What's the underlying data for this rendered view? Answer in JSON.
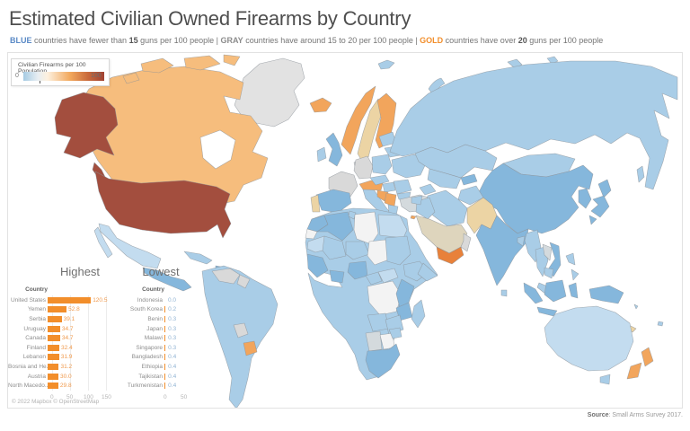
{
  "page": {
    "title": "Estimated Civilian Owned Firearms by Country"
  },
  "subtitle": {
    "parts": [
      {
        "text": "BLUE"
      },
      {
        "text": " countries have fewer than "
      },
      {
        "text": "15"
      },
      {
        "text": " guns per 100 people | "
      },
      {
        "text": "GRAY"
      },
      {
        "text": " countries have around 15 to 20 per 100 people | "
      },
      {
        "text": "GOLD"
      },
      {
        "text": " countries have over "
      },
      {
        "text": "20"
      },
      {
        "text": " guns per 100 people"
      }
    ]
  },
  "legend": {
    "title": "Civilian Firearms per 100 Population",
    "min": "0",
    "max": "100"
  },
  "colors": {
    "blue_label": "#5a8ac6",
    "gold_label": "#f28e2b",
    "bar_orange": "#f28e2b",
    "usa_dark_red": "#a34e3e",
    "canada_orange": "#f6bd7d",
    "map_light_blue": "#a9cde7",
    "map_gray": "#d9d9d9",
    "scale_min_color": "#a6cbe3",
    "scale_max_color": "#a04233"
  },
  "charts": {
    "highest": {
      "title": "Highest",
      "column_header": "Country",
      "rows": [
        {
          "country": "United States",
          "value": "120.5",
          "v": 120.5
        },
        {
          "country": "Yemen",
          "value": "52.8",
          "v": 52.8
        },
        {
          "country": "Serbia",
          "value": "39.1",
          "v": 39.1
        },
        {
          "country": "Uruguay",
          "value": "34.7",
          "v": 34.7
        },
        {
          "country": "Canada",
          "value": "34.7",
          "v": 34.7
        },
        {
          "country": "Finland",
          "value": "32.4",
          "v": 32.4
        },
        {
          "country": "Lebanon",
          "value": "31.9",
          "v": 31.9
        },
        {
          "country": "Bosnia and He..",
          "value": "31.2",
          "v": 31.2
        },
        {
          "country": "Austria",
          "value": "30.0",
          "v": 30.0
        },
        {
          "country": "North Macedo..",
          "value": "29.8",
          "v": 29.8
        }
      ],
      "axis_ticks": [
        "0",
        "50",
        "100",
        "150"
      ]
    },
    "lowest": {
      "title": "Lowest",
      "column_header": "Country",
      "rows": [
        {
          "country": "Indonesia",
          "value": "0.0",
          "v": 0.0
        },
        {
          "country": "South Korea",
          "value": "0.2",
          "v": 0.2
        },
        {
          "country": "Benin",
          "value": "0.3",
          "v": 0.3
        },
        {
          "country": "Japan",
          "value": "0.3",
          "v": 0.3
        },
        {
          "country": "Malawi",
          "value": "0.3",
          "v": 0.3
        },
        {
          "country": "Singapore",
          "value": "0.3",
          "v": 0.3
        },
        {
          "country": "Bangladesh",
          "value": "0.4",
          "v": 0.4
        },
        {
          "country": "Ethiopia",
          "value": "0.4",
          "v": 0.4
        },
        {
          "country": "Tajikistan",
          "value": "0.4",
          "v": 0.4
        },
        {
          "country": "Turkmenistan",
          "value": "0.4",
          "v": 0.4
        }
      ],
      "axis_ticks": [
        "0",
        "50"
      ]
    }
  },
  "chart_data": [
    {
      "type": "bar",
      "title": "Highest",
      "orientation": "horizontal",
      "categories": [
        "United States",
        "Yemen",
        "Serbia",
        "Uruguay",
        "Canada",
        "Finland",
        "Lebanon",
        "Bosnia and He..",
        "Austria",
        "North Macedo.."
      ],
      "values": [
        120.5,
        52.8,
        39.1,
        34.7,
        34.7,
        32.4,
        31.9,
        31.2,
        30.0,
        29.8
      ],
      "xlabel": "",
      "ylabel": "Country",
      "xlim": [
        0,
        150
      ],
      "bar_color": "#f28e2b",
      "grid": true
    },
    {
      "type": "bar",
      "title": "Lowest",
      "orientation": "horizontal",
      "categories": [
        "Indonesia",
        "South Korea",
        "Benin",
        "Japan",
        "Malawi",
        "Singapore",
        "Bangladesh",
        "Ethiopia",
        "Tajikistan",
        "Turkmenistan"
      ],
      "values": [
        0.0,
        0.2,
        0.3,
        0.3,
        0.3,
        0.3,
        0.4,
        0.4,
        0.4,
        0.4
      ],
      "xlabel": "",
      "ylabel": "Country",
      "xlim": [
        0,
        50
      ],
      "bar_color": "#f28e2b",
      "grid": true
    },
    {
      "type": "choropleth_map",
      "title": "Civilian Firearms per 100 Population",
      "scale": {
        "min": 0,
        "max": 100,
        "min_color": "#a6cbe3",
        "max_color": "#a04233"
      },
      "classification": [
        {
          "label": "BLUE",
          "rule": "fewer than 15 guns per 100 people"
        },
        {
          "label": "GRAY",
          "rule": "around 15 to 20 per 100 people"
        },
        {
          "label": "GOLD",
          "rule": "over 20 guns per 100 people"
        }
      ],
      "notable_countries": {
        "United States": "dark red (120.5)",
        "Yemen": "strong orange (52.8)",
        "Canada": "light orange (34.7)",
        "Norway, Finland, Iceland, Austria, Serbia, Uruguay, New Zealand": "gold/orange",
        "Sweden, Pakistan, Portugal, Saudi Arabia": "tan",
        "France, Germany, Venezuela, Paraguay, Turkey, Greenland": "gray",
        "Russia, China, India, Australia, most of Africa and South America": "blue",
        "Libya, Chad, DR Congo, Botswana": "no data (white)"
      }
    }
  ],
  "footer": {
    "attribution": "© 2022 Mapbox © OpenStreetMap",
    "source_label": "Source",
    "source_text": ": Small Arms Survey 2017."
  }
}
